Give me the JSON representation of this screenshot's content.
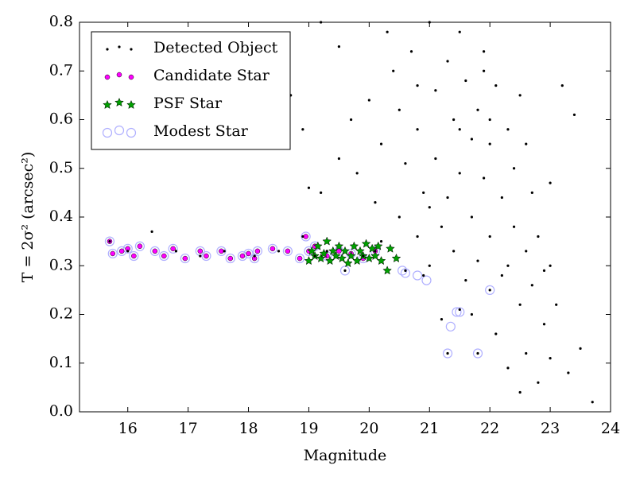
{
  "chart_data": {
    "type": "scatter",
    "xlabel": "Magnitude",
    "ylabel": "T = 2σ² (arcsec²)",
    "xlim": [
      15.2,
      24
    ],
    "ylim": [
      0,
      0.8
    ],
    "xticks": [
      16,
      17,
      18,
      19,
      20,
      21,
      22,
      23,
      24
    ],
    "yticks": [
      {
        "value": 0,
        "label": "0.0"
      },
      0.1,
      0.2,
      0.3,
      0.4,
      0.5,
      0.6,
      0.7,
      0.8
    ],
    "legend": "upper left",
    "series": [
      {
        "name": "Detected Object",
        "color": "#000000",
        "marker": "dot",
        "x": [
          15.7,
          16.0,
          16.4,
          16.8,
          17.2,
          17.6,
          18.1,
          18.5,
          18.9,
          19.1,
          19.3,
          19.6,
          19.9,
          20.1,
          20.6,
          20.9,
          21.3,
          21.5,
          21.8,
          22.0,
          18.7,
          18.9,
          19.0,
          19.2,
          19.2,
          19.5,
          19.5,
          19.7,
          19.8,
          20.0,
          20.1,
          20.2,
          20.3,
          20.4,
          20.5,
          20.5,
          20.6,
          20.7,
          20.8,
          20.8,
          20.9,
          21.0,
          21.0,
          21.1,
          21.1,
          21.2,
          21.2,
          21.3,
          21.3,
          21.4,
          21.4,
          21.5,
          21.5,
          21.6,
          21.6,
          21.7,
          21.7,
          21.8,
          21.8,
          21.9,
          21.9,
          22.0,
          22.0,
          22.1,
          22.1,
          22.2,
          22.2,
          22.3,
          22.3,
          22.4,
          22.4,
          22.5,
          22.5,
          22.6,
          22.6,
          22.7,
          22.7,
          22.8,
          22.8,
          22.9,
          22.9,
          23.0,
          23.0,
          23.1,
          23.2,
          23.3,
          23.4,
          23.5,
          23.7,
          22.5,
          21.9,
          20.2,
          21.0,
          22.0,
          22.6,
          21.5,
          20.8,
          22.3,
          23.0,
          21.7
        ],
        "values": [
          0.35,
          0.33,
          0.37,
          0.33,
          0.32,
          0.33,
          0.32,
          0.33,
          0.36,
          0.32,
          0.33,
          0.29,
          0.32,
          0.33,
          0.29,
          0.28,
          0.12,
          0.21,
          0.12,
          0.25,
          0.65,
          0.58,
          0.46,
          0.45,
          0.8,
          0.75,
          0.52,
          0.6,
          0.49,
          0.64,
          0.43,
          0.55,
          0.78,
          0.7,
          0.4,
          0.62,
          0.51,
          0.74,
          0.36,
          0.58,
          0.45,
          0.8,
          0.3,
          0.66,
          0.52,
          0.38,
          0.19,
          0.72,
          0.44,
          0.6,
          0.33,
          0.78,
          0.49,
          0.27,
          0.68,
          0.56,
          0.4,
          0.62,
          0.31,
          0.74,
          0.48,
          0.55,
          0.36,
          0.67,
          0.16,
          0.44,
          0.28,
          0.58,
          0.09,
          0.38,
          0.5,
          0.22,
          0.65,
          0.33,
          0.12,
          0.45,
          0.26,
          0.06,
          0.36,
          0.18,
          0.29,
          0.11,
          0.47,
          0.22,
          0.67,
          0.08,
          0.61,
          0.13,
          0.02,
          0.04,
          0.7,
          0.35,
          0.42,
          0.6,
          0.55,
          0.58,
          0.67,
          0.3,
          0.3,
          0.2
        ]
      },
      {
        "name": "Candidate Star",
        "color": "#ff00ff",
        "marker": "circle",
        "x": [
          15.7,
          15.75,
          15.9,
          16.0,
          16.1,
          16.2,
          16.45,
          16.6,
          16.75,
          16.95,
          17.2,
          17.3,
          17.55,
          17.7,
          17.9,
          18.0,
          18.1,
          18.15,
          18.4,
          18.65,
          18.85,
          18.95,
          19.0,
          19.1,
          19.3,
          19.5,
          19.7,
          19.9,
          20.1
        ],
        "values": [
          0.35,
          0.325,
          0.33,
          0.335,
          0.32,
          0.34,
          0.33,
          0.32,
          0.335,
          0.315,
          0.33,
          0.32,
          0.33,
          0.315,
          0.32,
          0.325,
          0.315,
          0.33,
          0.335,
          0.33,
          0.315,
          0.36,
          0.33,
          0.34,
          0.32,
          0.33,
          0.325,
          0.315,
          0.33
        ]
      },
      {
        "name": "PSF Star",
        "color": "#00a000",
        "marker": "star",
        "x": [
          19.0,
          19.05,
          19.1,
          19.15,
          19.2,
          19.25,
          19.3,
          19.35,
          19.4,
          19.45,
          19.5,
          19.55,
          19.6,
          19.65,
          19.7,
          19.75,
          19.8,
          19.85,
          19.9,
          19.95,
          20.0,
          20.05,
          20.1,
          20.15,
          20.2,
          20.35,
          20.3,
          20.45
        ],
        "values": [
          0.31,
          0.33,
          0.32,
          0.34,
          0.315,
          0.325,
          0.35,
          0.31,
          0.33,
          0.32,
          0.34,
          0.315,
          0.33,
          0.305,
          0.32,
          0.34,
          0.31,
          0.33,
          0.32,
          0.345,
          0.315,
          0.335,
          0.32,
          0.34,
          0.31,
          0.335,
          0.29,
          0.315
        ]
      },
      {
        "name": "Modest Star",
        "color": "#b0b0ff",
        "marker": "ring",
        "x": [
          15.7,
          15.75,
          15.9,
          16.0,
          16.1,
          16.2,
          16.45,
          16.6,
          16.75,
          16.95,
          17.2,
          17.3,
          17.55,
          17.7,
          17.9,
          18.0,
          18.1,
          18.15,
          18.4,
          18.65,
          18.85,
          18.95,
          19.0,
          19.1,
          19.3,
          19.5,
          19.7,
          19.9,
          20.1,
          19.6,
          20.55,
          20.6,
          20.8,
          20.95,
          21.3,
          21.35,
          21.45,
          21.5,
          21.8,
          22.0
        ],
        "values": [
          0.35,
          0.325,
          0.33,
          0.335,
          0.32,
          0.34,
          0.33,
          0.32,
          0.335,
          0.315,
          0.33,
          0.32,
          0.33,
          0.315,
          0.32,
          0.325,
          0.315,
          0.33,
          0.335,
          0.33,
          0.315,
          0.36,
          0.33,
          0.34,
          0.32,
          0.33,
          0.325,
          0.315,
          0.33,
          0.29,
          0.29,
          0.285,
          0.28,
          0.27,
          0.12,
          0.175,
          0.205,
          0.205,
          0.12,
          0.25
        ]
      }
    ]
  }
}
